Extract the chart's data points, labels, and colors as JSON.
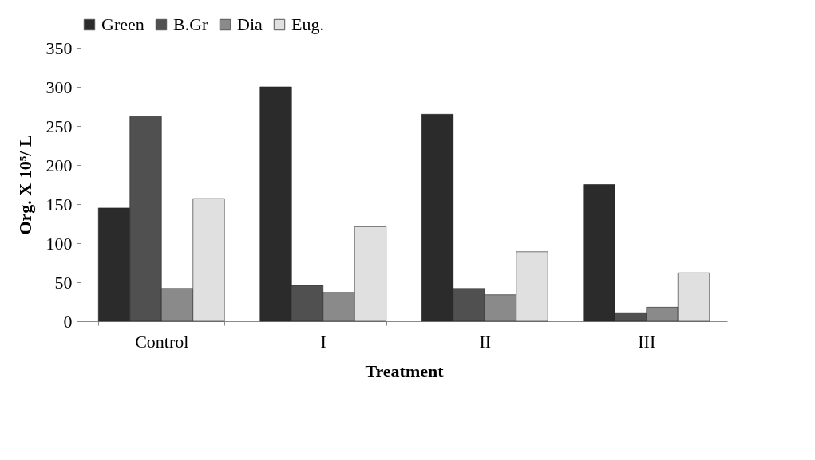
{
  "chart_data": {
    "type": "bar",
    "xlabel": "Treatment",
    "ylabel": "Org. X 10⁵/ L",
    "categories": [
      "Control",
      "I",
      "II",
      "III"
    ],
    "series": [
      {
        "name": "Green",
        "color": "#2b2b2b",
        "values": [
          145,
          300,
          265,
          175
        ]
      },
      {
        "name": "B.Gr",
        "color": "#505050",
        "values": [
          262,
          46,
          42,
          11
        ]
      },
      {
        "name": "Dia",
        "color": "#8a8a8a",
        "values": [
          42,
          37,
          34,
          18
        ]
      },
      {
        "name": "Eug.",
        "color": "#e0e0e0",
        "values": [
          157,
          121,
          89,
          62
        ]
      }
    ],
    "ylim": [
      0,
      350
    ],
    "yticks": [
      0,
      50,
      100,
      150,
      200,
      250,
      300,
      350
    ],
    "grid": false,
    "legend": "top"
  }
}
